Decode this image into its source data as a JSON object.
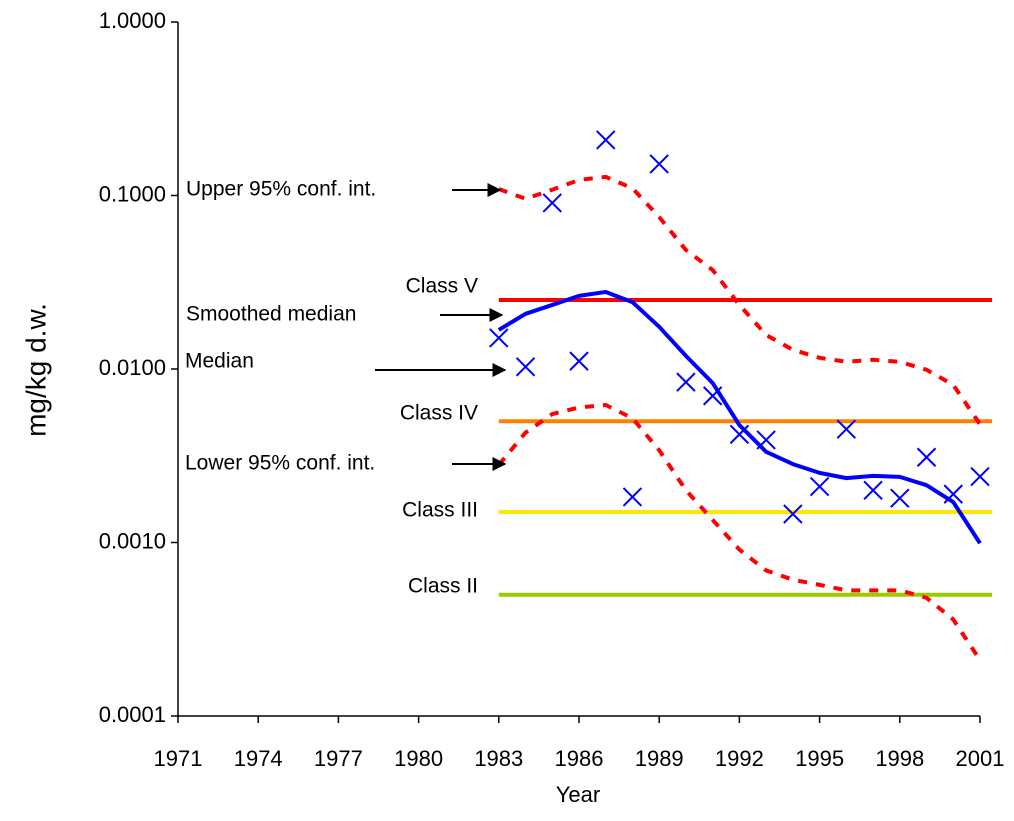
{
  "chart_data": {
    "type": "line",
    "x_label": "Year",
    "y_label": "mg/kg d.w.",
    "log_y": true,
    "xlim": [
      1971,
      2001
    ],
    "xticks": [
      1971,
      1974,
      1977,
      1980,
      1983,
      1986,
      1989,
      1992,
      1995,
      1998,
      2001
    ],
    "ylim": [
      0.0001,
      1
    ],
    "yticks": [
      {
        "value": 0.0001,
        "label": "0.0001"
      },
      {
        "value": 0.001,
        "label": "0.0010"
      },
      {
        "value": 0.01,
        "label": "0.0100"
      },
      {
        "value": 0.1,
        "label": "0.1000"
      },
      {
        "value": 1,
        "label": "1.0000"
      }
    ],
    "x": [
      1983,
      1984,
      1985,
      1986,
      1987,
      1988,
      1989,
      1990,
      1991,
      1992,
      1993,
      1994,
      1995,
      1996,
      1997,
      1998,
      1999,
      2000,
      2001
    ],
    "series": [
      {
        "name": "Upper 95% conf. int.",
        "style": "dotted",
        "color": "#ff0000",
        "values": [
          0.109,
          0.0957,
          0.108,
          0.123,
          0.128,
          0.11,
          0.0752,
          0.0485,
          0.0372,
          0.0234,
          0.0157,
          0.0129,
          0.0116,
          0.011,
          0.0113,
          0.011,
          0.0099,
          0.0081,
          0.0048
        ]
      },
      {
        "name": "Smoothed median",
        "style": "solid",
        "color": "#0000ff",
        "values": [
          0.0168,
          0.0208,
          0.0234,
          0.0264,
          0.0278,
          0.0243,
          0.0175,
          0.0119,
          0.0083,
          0.00475,
          0.00333,
          0.00283,
          0.00252,
          0.00235,
          0.00242,
          0.00239,
          0.00214,
          0.00171,
          0.00099
        ]
      },
      {
        "name": "Median",
        "style": "markers",
        "color": "#0000ff",
        "values": [
          0.0151,
          0.0103,
          0.0906,
          0.0111,
          0.209,
          0.00183,
          0.152,
          0.0084,
          0.007,
          0.0042,
          0.0039,
          0.00146,
          0.0021,
          0.0045,
          0.002,
          0.0018,
          0.0031,
          0.0019,
          0.0024
        ]
      },
      {
        "name": "Lower 95% conf. int.",
        "style": "dotted",
        "color": "#ff0000",
        "values": [
          0.0028,
          0.0043,
          0.0055,
          0.006,
          0.0062,
          0.0052,
          0.0034,
          0.002,
          0.00135,
          0.00091,
          0.00069,
          0.00061,
          0.00057,
          0.00053,
          0.00053,
          0.00053,
          0.00048,
          0.00036,
          0.00021
        ]
      }
    ],
    "thresholds": [
      {
        "name": "Class V",
        "value": 0.025,
        "color": "#ff0000"
      },
      {
        "name": "Class IV",
        "value": 0.005,
        "color": "#ff8000"
      },
      {
        "name": "Class III",
        "value": 0.0015,
        "color": "#ffe600"
      },
      {
        "name": "Class II",
        "value": 0.0005,
        "color": "#99cc00"
      }
    ]
  }
}
